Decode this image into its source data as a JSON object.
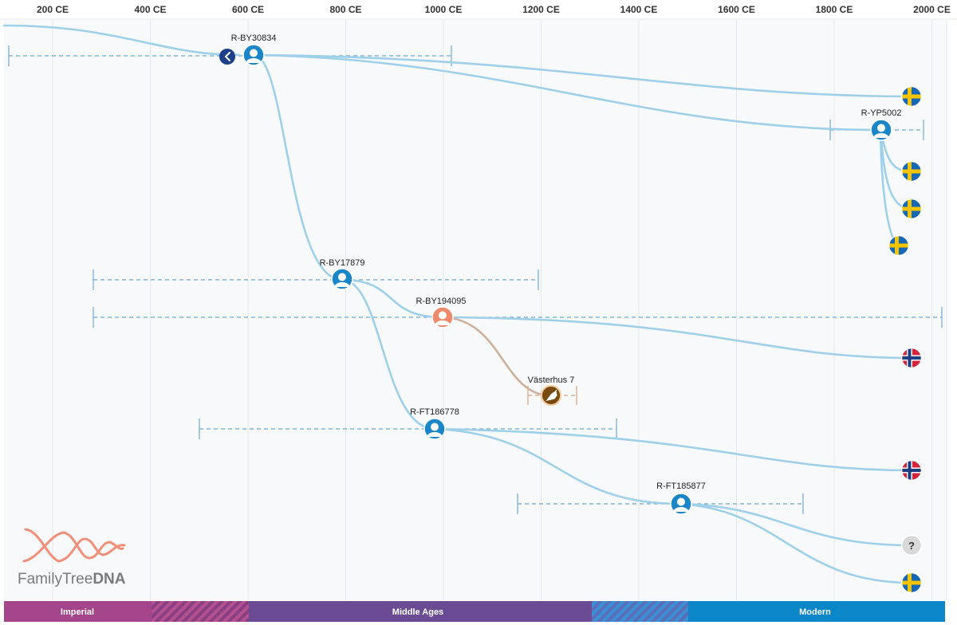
{
  "timeline": {
    "axis_ticks": [
      {
        "label": "200 CE",
        "year": 200
      },
      {
        "label": "400 CE",
        "year": 400
      },
      {
        "label": "600 CE",
        "year": 600
      },
      {
        "label": "800 CE",
        "year": 800
      },
      {
        "label": "1000 CE",
        "year": 1000
      },
      {
        "label": "1200 CE",
        "year": 1200
      },
      {
        "label": "1400 CE",
        "year": 1400
      },
      {
        "label": "1600 CE",
        "year": 1600
      },
      {
        "label": "1800 CE",
        "year": 1800
      },
      {
        "label": "2000 CE",
        "year": 2000
      }
    ],
    "eras": [
      {
        "label": "Imperial",
        "color": "#a5458c"
      },
      {
        "label": "",
        "color": "#a5458c",
        "transition": true
      },
      {
        "label": "Middle Ages",
        "color": "#6b4c94"
      },
      {
        "label": "",
        "color": "#3a7fc1",
        "transition": true
      },
      {
        "label": "Modern",
        "color": "#0b86c8"
      }
    ]
  },
  "nodes": {
    "by30834": {
      "label": "R-BY30834"
    },
    "yp5002": {
      "label": "R-YP5002"
    },
    "by17879": {
      "label": "R-BY17879"
    },
    "by194095": {
      "label": "R-BY194095"
    },
    "vasterhus": {
      "label": "Västerhus 7"
    },
    "ft186778": {
      "label": "R-FT186778"
    },
    "ft185877": {
      "label": "R-FT185877"
    }
  },
  "leaves": {
    "sweden_1": {
      "country": "Sweden",
      "icon": "flag-sweden-icon"
    },
    "sweden_2": {
      "country": "Sweden",
      "icon": "flag-sweden-icon"
    },
    "sweden_3": {
      "country": "Sweden",
      "icon": "flag-sweden-icon"
    },
    "sweden_4": {
      "country": "Sweden",
      "icon": "flag-sweden-icon"
    },
    "norway_1": {
      "country": "Norway",
      "icon": "flag-norway-icon"
    },
    "norway_2": {
      "country": "Norway",
      "icon": "flag-norway-icon"
    },
    "unknown_1": {
      "symbol": "?",
      "icon": "unknown-origin-icon"
    },
    "sweden_5": {
      "country": "Sweden",
      "icon": "flag-sweden-icon"
    }
  },
  "logo": {
    "text_regular": "FamilyTree",
    "text_bold": "DNA"
  },
  "colors": {
    "branch": "#9fd0ea",
    "ancient_branch": "#cdb19a",
    "node_blue": "#1a86c8",
    "node_salmon": "#ee8a6a",
    "node_ancient": "#7a4a12",
    "back_button": "#1c3f8a",
    "sweden_blue": "#1668b6",
    "sweden_yellow": "#f5c400",
    "norway_red": "#d4243b",
    "norway_blue": "#1f3d82",
    "logo_salmon": "#f1907a"
  }
}
